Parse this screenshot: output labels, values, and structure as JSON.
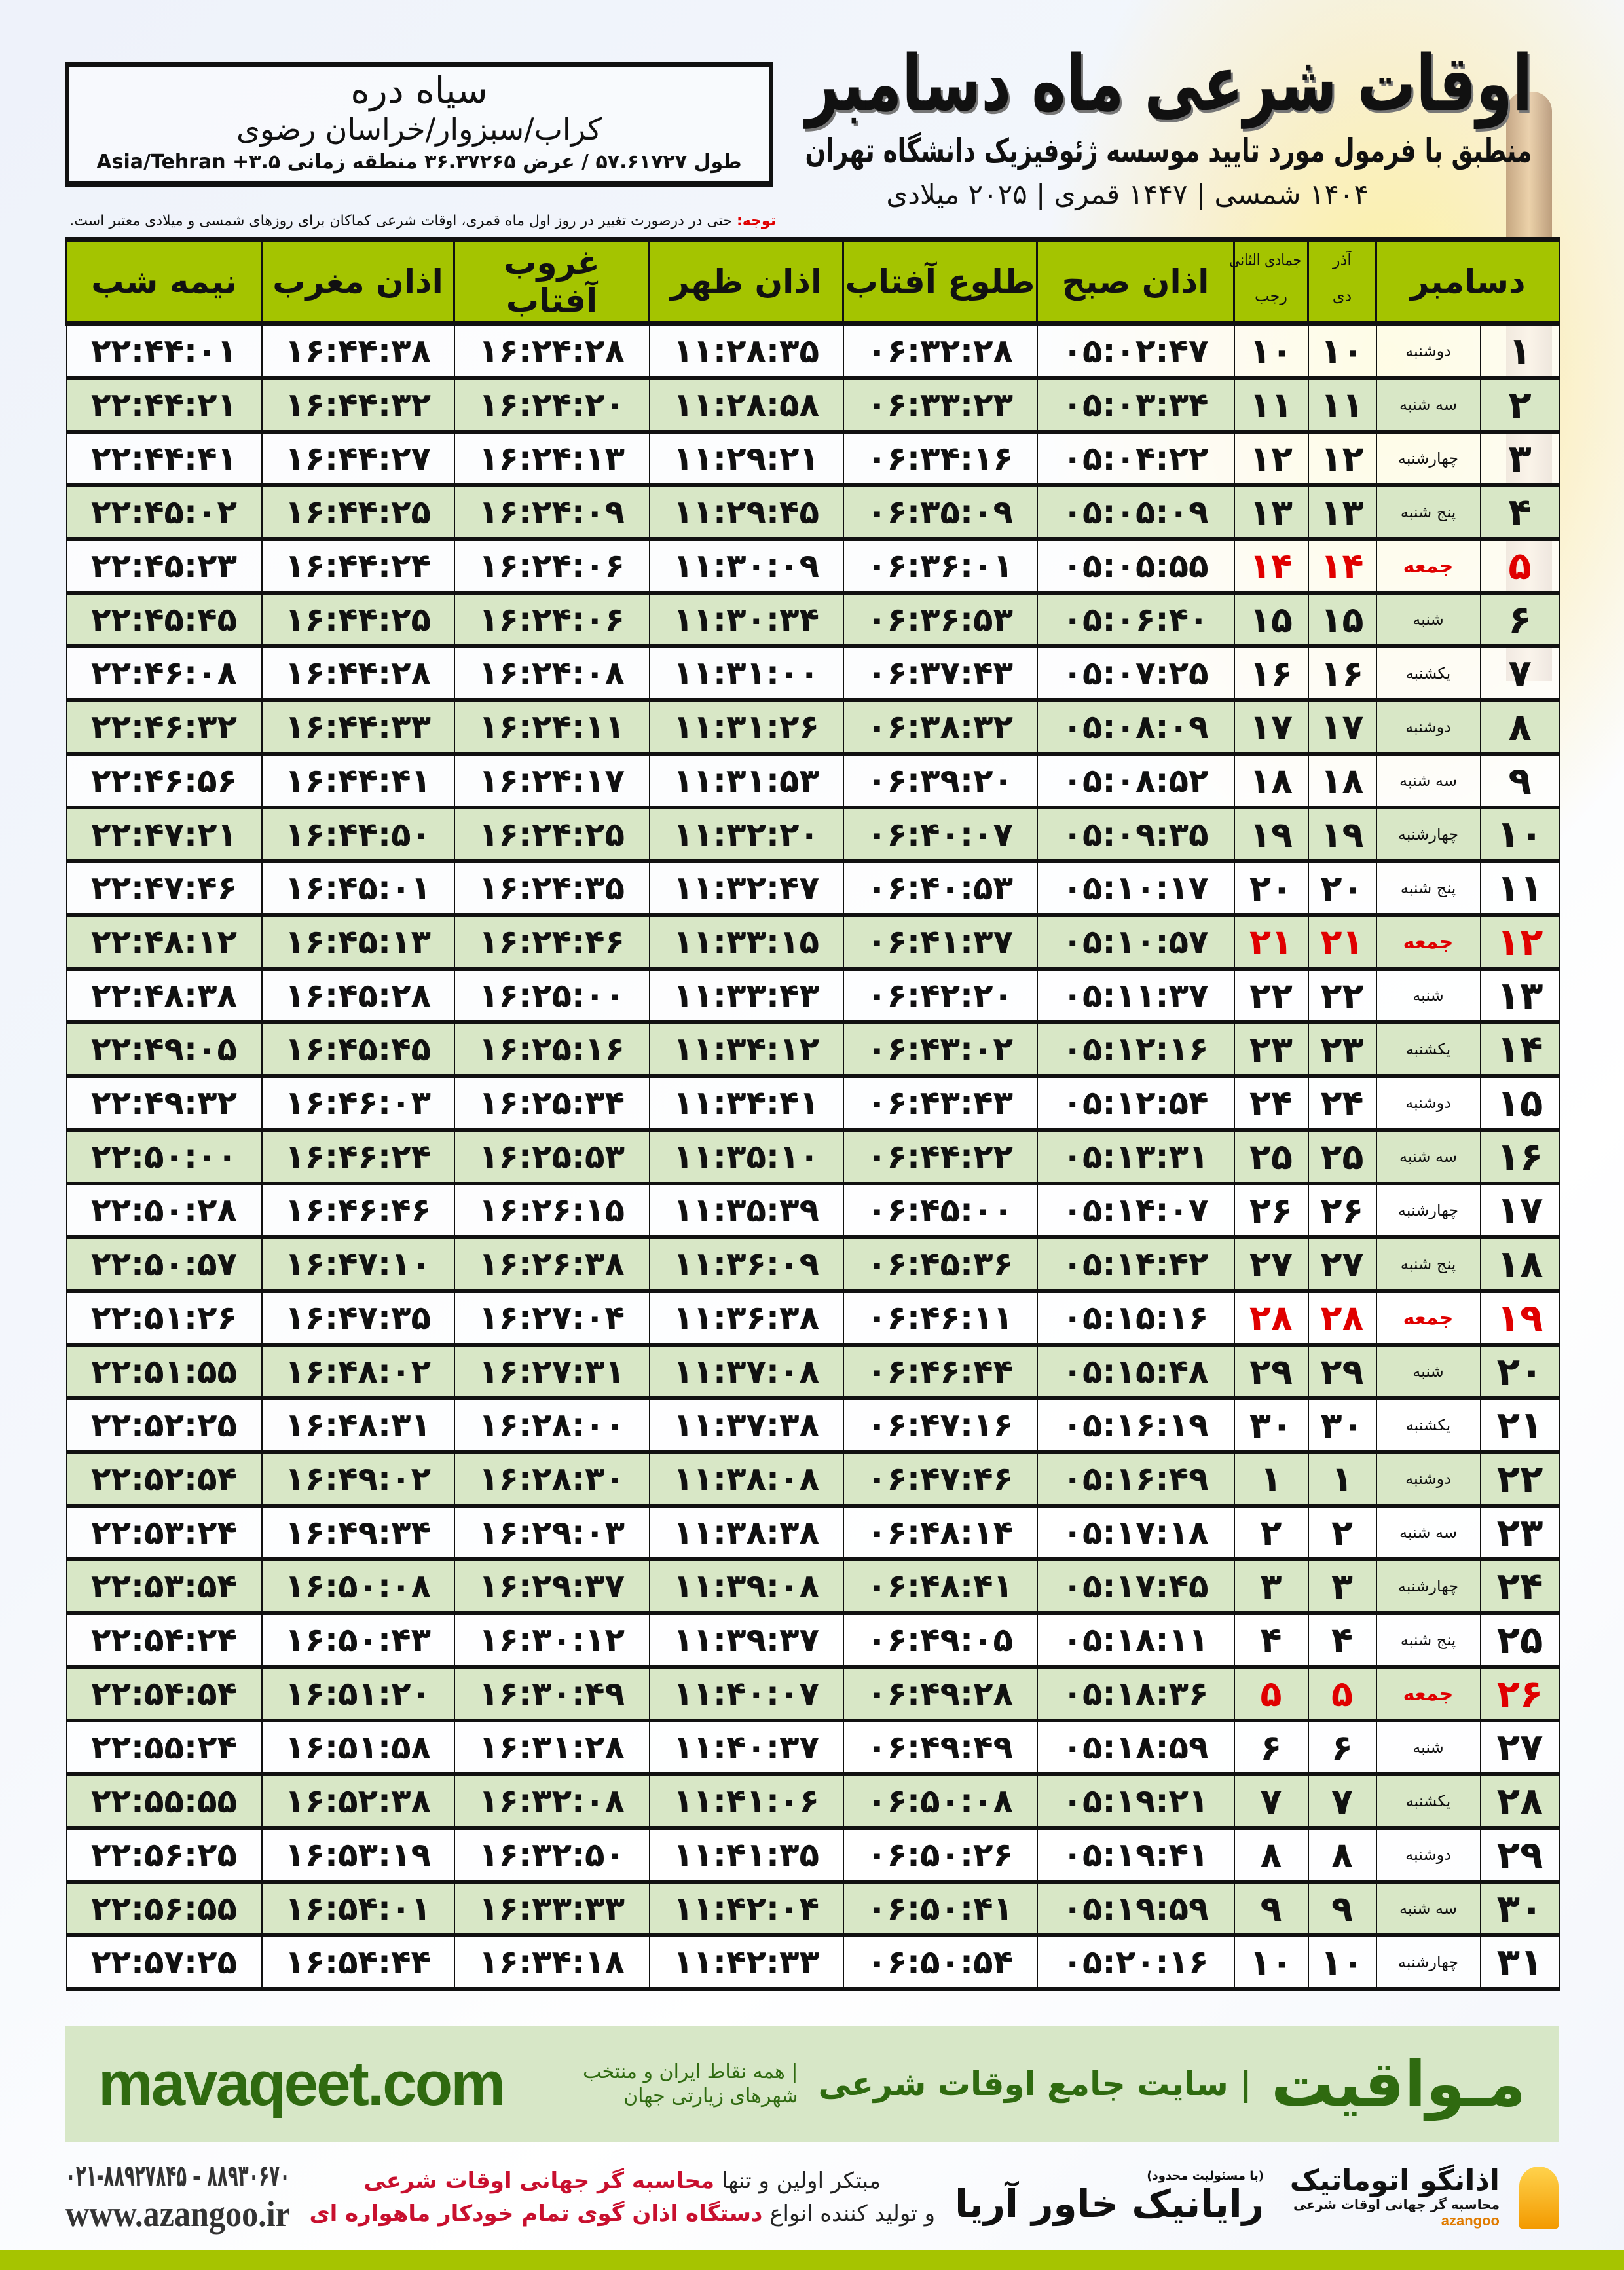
{
  "header": {
    "title": "اوقات شرعی ماه دسامبر",
    "subtitle": "منطبق با فرمول مورد تایید موسسه ژئوفیزیک دانشگاه تهران",
    "dates": "۱۴۰۴ شمسی | ۱۴۴۷ قمری | ۲۰۲۵ میلادی"
  },
  "location": {
    "name": "سیاه دره",
    "path": "کراب/سبزوار/خراسان رضوی",
    "coords": "طول ۵۷.۶۱۷۲۷ / عرض ۳۶.۳۷۲۶۵ منطقه زمانی ۳.۵+ Asia/Tehran"
  },
  "note": {
    "label": "توجه:",
    "text": " حتی در درصورت تغییر در روز اول ماه قمری، اوقات شرعی کماکان برای روزهای شمسی و میلادی معتبر است."
  },
  "table": {
    "headers": {
      "month": "دسامبر",
      "shamsi_top": "آذر",
      "shamsi_bottom": "دی",
      "hijri_top": "جمادی الثانی",
      "hijri_bottom": "رجب",
      "sobh": "اذان صبح",
      "tolu": "طلوع آفتاب",
      "zuhr": "اذان ظهر",
      "ghurub": "غروب آفتاب",
      "maghrib": "اذان مغرب",
      "nimeh": "نیمه شب"
    },
    "friday_color": "#e00000",
    "header_color": "#a4c400",
    "rows": [
      [
        "۱",
        "دوشنبه",
        "۱۰",
        "۱۰",
        "۰۵:۰۲:۴۷",
        "۰۶:۳۲:۲۸",
        "۱۱:۲۸:۳۵",
        "۱۶:۲۴:۲۸",
        "۱۶:۴۴:۳۸",
        "۲۲:۴۴:۰۱"
      ],
      [
        "۲",
        "سه شنبه",
        "۱۱",
        "۱۱",
        "۰۵:۰۳:۳۴",
        "۰۶:۳۳:۲۳",
        "۱۱:۲۸:۵۸",
        "۱۶:۲۴:۲۰",
        "۱۶:۴۴:۳۲",
        "۲۲:۴۴:۲۱"
      ],
      [
        "۳",
        "چهارشنبه",
        "۱۲",
        "۱۲",
        "۰۵:۰۴:۲۲",
        "۰۶:۳۴:۱۶",
        "۱۱:۲۹:۲۱",
        "۱۶:۲۴:۱۳",
        "۱۶:۴۴:۲۷",
        "۲۲:۴۴:۴۱"
      ],
      [
        "۴",
        "پنج شنبه",
        "۱۳",
        "۱۳",
        "۰۵:۰۵:۰۹",
        "۰۶:۳۵:۰۹",
        "۱۱:۲۹:۴۵",
        "۱۶:۲۴:۰۹",
        "۱۶:۴۴:۲۵",
        "۲۲:۴۵:۰۲"
      ],
      [
        "۵",
        "جمعه",
        "۱۴",
        "۱۴",
        "۰۵:۰۵:۵۵",
        "۰۶:۳۶:۰۱",
        "۱۱:۳۰:۰۹",
        "۱۶:۲۴:۰۶",
        "۱۶:۴۴:۲۴",
        "۲۲:۴۵:۲۳"
      ],
      [
        "۶",
        "شنبه",
        "۱۵",
        "۱۵",
        "۰۵:۰۶:۴۰",
        "۰۶:۳۶:۵۳",
        "۱۱:۳۰:۳۴",
        "۱۶:۲۴:۰۶",
        "۱۶:۴۴:۲۵",
        "۲۲:۴۵:۴۵"
      ],
      [
        "۷",
        "یکشنبه",
        "۱۶",
        "۱۶",
        "۰۵:۰۷:۲۵",
        "۰۶:۳۷:۴۳",
        "۱۱:۳۱:۰۰",
        "۱۶:۲۴:۰۸",
        "۱۶:۴۴:۲۸",
        "۲۲:۴۶:۰۸"
      ],
      [
        "۸",
        "دوشنبه",
        "۱۷",
        "۱۷",
        "۰۵:۰۸:۰۹",
        "۰۶:۳۸:۳۲",
        "۱۱:۳۱:۲۶",
        "۱۶:۲۴:۱۱",
        "۱۶:۴۴:۳۳",
        "۲۲:۴۶:۳۲"
      ],
      [
        "۹",
        "سه شنبه",
        "۱۸",
        "۱۸",
        "۰۵:۰۸:۵۲",
        "۰۶:۳۹:۲۰",
        "۱۱:۳۱:۵۳",
        "۱۶:۲۴:۱۷",
        "۱۶:۴۴:۴۱",
        "۲۲:۴۶:۵۶"
      ],
      [
        "۱۰",
        "چهارشنبه",
        "۱۹",
        "۱۹",
        "۰۵:۰۹:۳۵",
        "۰۶:۴۰:۰۷",
        "۱۱:۳۲:۲۰",
        "۱۶:۲۴:۲۵",
        "۱۶:۴۴:۵۰",
        "۲۲:۴۷:۲۱"
      ],
      [
        "۱۱",
        "پنج شنبه",
        "۲۰",
        "۲۰",
        "۰۵:۱۰:۱۷",
        "۰۶:۴۰:۵۳",
        "۱۱:۳۲:۴۷",
        "۱۶:۲۴:۳۵",
        "۱۶:۴۵:۰۱",
        "۲۲:۴۷:۴۶"
      ],
      [
        "۱۲",
        "جمعه",
        "۲۱",
        "۲۱",
        "۰۵:۱۰:۵۷",
        "۰۶:۴۱:۳۷",
        "۱۱:۳۳:۱۵",
        "۱۶:۲۴:۴۶",
        "۱۶:۴۵:۱۳",
        "۲۲:۴۸:۱۲"
      ],
      [
        "۱۳",
        "شنبه",
        "۲۲",
        "۲۲",
        "۰۵:۱۱:۳۷",
        "۰۶:۴۲:۲۰",
        "۱۱:۳۳:۴۳",
        "۱۶:۲۵:۰۰",
        "۱۶:۴۵:۲۸",
        "۲۲:۴۸:۳۸"
      ],
      [
        "۱۴",
        "یکشنبه",
        "۲۳",
        "۲۳",
        "۰۵:۱۲:۱۶",
        "۰۶:۴۳:۰۲",
        "۱۱:۳۴:۱۲",
        "۱۶:۲۵:۱۶",
        "۱۶:۴۵:۴۵",
        "۲۲:۴۹:۰۵"
      ],
      [
        "۱۵",
        "دوشنبه",
        "۲۴",
        "۲۴",
        "۰۵:۱۲:۵۴",
        "۰۶:۴۳:۴۳",
        "۱۱:۳۴:۴۱",
        "۱۶:۲۵:۳۴",
        "۱۶:۴۶:۰۳",
        "۲۲:۴۹:۳۲"
      ],
      [
        "۱۶",
        "سه شنبه",
        "۲۵",
        "۲۵",
        "۰۵:۱۳:۳۱",
        "۰۶:۴۴:۲۲",
        "۱۱:۳۵:۱۰",
        "۱۶:۲۵:۵۳",
        "۱۶:۴۶:۲۴",
        "۲۲:۵۰:۰۰"
      ],
      [
        "۱۷",
        "چهارشنبه",
        "۲۶",
        "۲۶",
        "۰۵:۱۴:۰۷",
        "۰۶:۴۵:۰۰",
        "۱۱:۳۵:۳۹",
        "۱۶:۲۶:۱۵",
        "۱۶:۴۶:۴۶",
        "۲۲:۵۰:۲۸"
      ],
      [
        "۱۸",
        "پنج شنبه",
        "۲۷",
        "۲۷",
        "۰۵:۱۴:۴۲",
        "۰۶:۴۵:۳۶",
        "۱۱:۳۶:۰۹",
        "۱۶:۲۶:۳۸",
        "۱۶:۴۷:۱۰",
        "۲۲:۵۰:۵۷"
      ],
      [
        "۱۹",
        "جمعه",
        "۲۸",
        "۲۸",
        "۰۵:۱۵:۱۶",
        "۰۶:۴۶:۱۱",
        "۱۱:۳۶:۳۸",
        "۱۶:۲۷:۰۴",
        "۱۶:۴۷:۳۵",
        "۲۲:۵۱:۲۶"
      ],
      [
        "۲۰",
        "شنبه",
        "۲۹",
        "۲۹",
        "۰۵:۱۵:۴۸",
        "۰۶:۴۶:۴۴",
        "۱۱:۳۷:۰۸",
        "۱۶:۲۷:۳۱",
        "۱۶:۴۸:۰۲",
        "۲۲:۵۱:۵۵"
      ],
      [
        "۲۱",
        "یکشنبه",
        "۳۰",
        "۳۰",
        "۰۵:۱۶:۱۹",
        "۰۶:۴۷:۱۶",
        "۱۱:۳۷:۳۸",
        "۱۶:۲۸:۰۰",
        "۱۶:۴۸:۳۱",
        "۲۲:۵۲:۲۵"
      ],
      [
        "۲۲",
        "دوشنبه",
        "۱",
        "۱",
        "۰۵:۱۶:۴۹",
        "۰۶:۴۷:۴۶",
        "۱۱:۳۸:۰۸",
        "۱۶:۲۸:۳۰",
        "۱۶:۴۹:۰۲",
        "۲۲:۵۲:۵۴"
      ],
      [
        "۲۳",
        "سه شنبه",
        "۲",
        "۲",
        "۰۵:۱۷:۱۸",
        "۰۶:۴۸:۱۴",
        "۱۱:۳۸:۳۸",
        "۱۶:۲۹:۰۳",
        "۱۶:۴۹:۳۴",
        "۲۲:۵۳:۲۴"
      ],
      [
        "۲۴",
        "چهارشنبه",
        "۳",
        "۳",
        "۰۵:۱۷:۴۵",
        "۰۶:۴۸:۴۱",
        "۱۱:۳۹:۰۸",
        "۱۶:۲۹:۳۷",
        "۱۶:۵۰:۰۸",
        "۲۲:۵۳:۵۴"
      ],
      [
        "۲۵",
        "پنج شنبه",
        "۴",
        "۴",
        "۰۵:۱۸:۱۱",
        "۰۶:۴۹:۰۵",
        "۱۱:۳۹:۳۷",
        "۱۶:۳۰:۱۲",
        "۱۶:۵۰:۴۳",
        "۲۲:۵۴:۲۴"
      ],
      [
        "۲۶",
        "جمعه",
        "۵",
        "۵",
        "۰۵:۱۸:۳۶",
        "۰۶:۴۹:۲۸",
        "۱۱:۴۰:۰۷",
        "۱۶:۳۰:۴۹",
        "۱۶:۵۱:۲۰",
        "۲۲:۵۴:۵۴"
      ],
      [
        "۲۷",
        "شنبه",
        "۶",
        "۶",
        "۰۵:۱۸:۵۹",
        "۰۶:۴۹:۴۹",
        "۱۱:۴۰:۳۷",
        "۱۶:۳۱:۲۸",
        "۱۶:۵۱:۵۸",
        "۲۲:۵۵:۲۴"
      ],
      [
        "۲۸",
        "یکشنبه",
        "۷",
        "۷",
        "۰۵:۱۹:۲۱",
        "۰۶:۵۰:۰۸",
        "۱۱:۴۱:۰۶",
        "۱۶:۳۲:۰۸",
        "۱۶:۵۲:۳۸",
        "۲۲:۵۵:۵۵"
      ],
      [
        "۲۹",
        "دوشنبه",
        "۸",
        "۸",
        "۰۵:۱۹:۴۱",
        "۰۶:۵۰:۲۶",
        "۱۱:۴۱:۳۵",
        "۱۶:۳۲:۵۰",
        "۱۶:۵۳:۱۹",
        "۲۲:۵۶:۲۵"
      ],
      [
        "۳۰",
        "سه شنبه",
        "۹",
        "۹",
        "۰۵:۱۹:۵۹",
        "۰۶:۵۰:۴۱",
        "۱۱:۴۲:۰۴",
        "۱۶:۳۳:۳۳",
        "۱۶:۵۴:۰۱",
        "۲۲:۵۶:۵۵"
      ],
      [
        "۳۱",
        "چهارشنبه",
        "۱۰",
        "۱۰",
        "۰۵:۲۰:۱۶",
        "۰۶:۵۰:۵۴",
        "۱۱:۴۲:۳۳",
        "۱۶:۳۴:۱۸",
        "۱۶:۵۴:۴۴",
        "۲۲:۵۷:۲۵"
      ]
    ]
  },
  "banner": {
    "site": "mavaqeet.com",
    "brand": "مـواقیت",
    "brand_sub": "| سایت جامع اوقات شرعی",
    "brand_tag": "| همه نقاط ایران و منتخب شهرهای زیارتی جهان",
    "brand_color": "#2f6a10"
  },
  "footer": {
    "phone": "۰۲۱-۸۸۹۲۷۸۴۵ – ۸۸۹۳۰۶۷۰",
    "website": "www.azangoo.ir",
    "line1_a": "مبتکر اولین و تنها ",
    "line1_b": "محاسبه گر جهانی اوقات شرعی",
    "line2_a": "و تولید کننده انواع ",
    "line2_b": "دستگاه اذان گوی تمام خودکار ماهواره ای",
    "logo_rayanik_small": "(با مسئولیت محدود)",
    "logo_rayanik": "رایانیک خاور آریا",
    "logo_azangoo": "اذانگو اتوماتیک",
    "logo_azangoo_sub": "محاسبه گر جهانی اوقات شرعی",
    "logo_azangoo_latin": "azangoo"
  }
}
